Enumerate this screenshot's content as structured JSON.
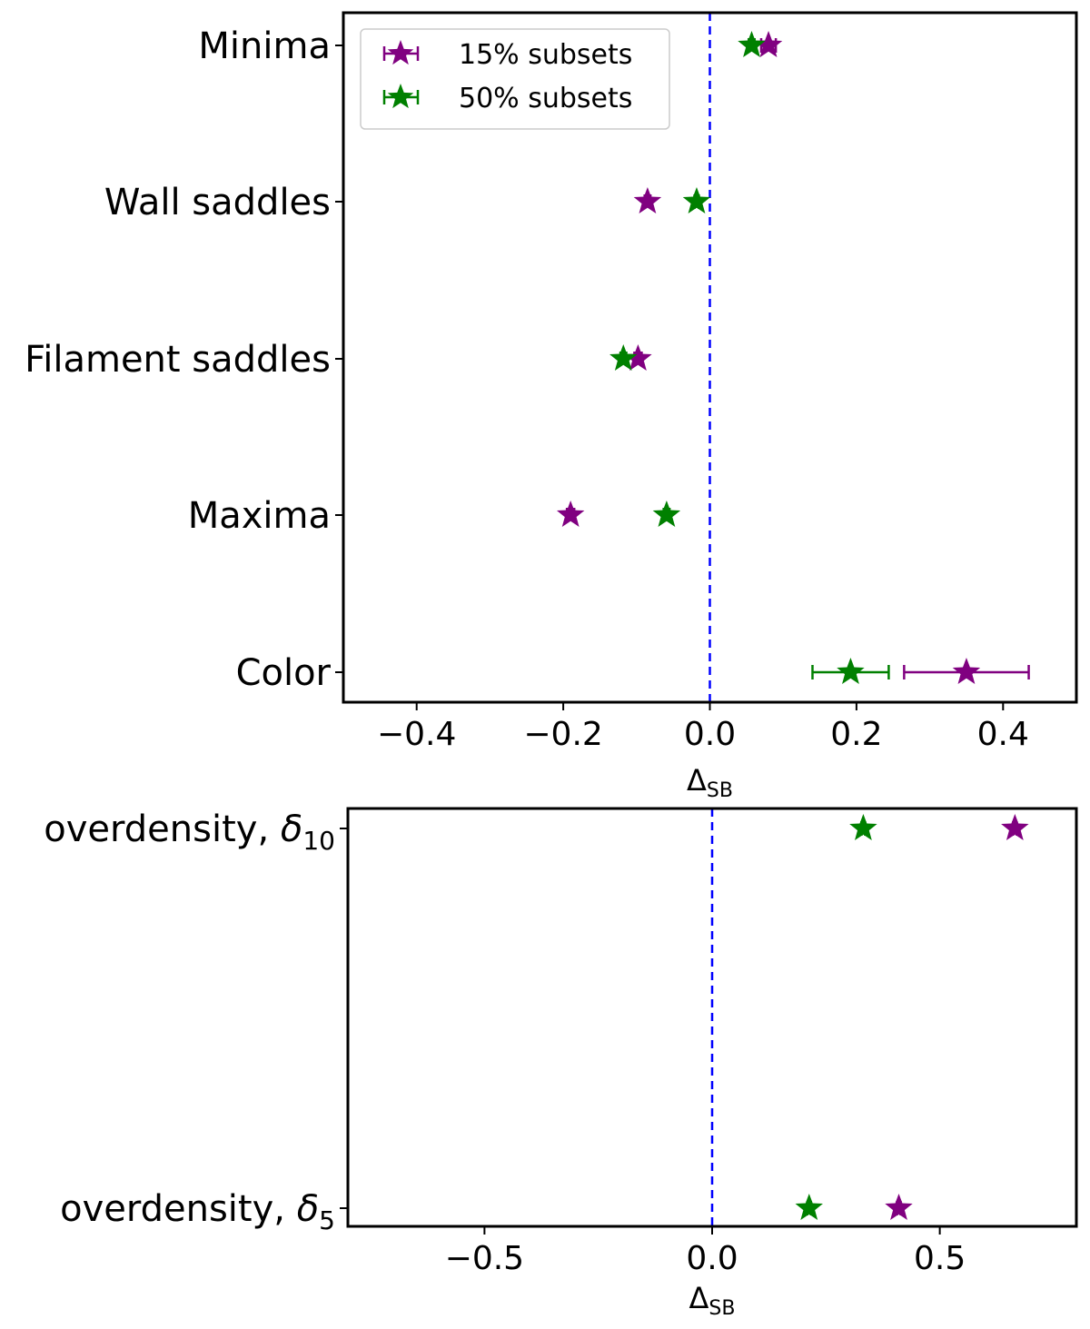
{
  "chart_data": [
    {
      "type": "scatter",
      "xlabel": "Δ",
      "xlabel_sub": "SB",
      "xlim": [
        -0.5,
        0.5
      ],
      "xticks": [
        -0.4,
        -0.2,
        0.0,
        0.2,
        0.4
      ],
      "xtick_labels": [
        "−0.4",
        "−0.2",
        "0.0",
        "0.2",
        "0.4"
      ],
      "categories": [
        "Minima",
        "Wall saddles",
        "Filament saddles",
        "Maxima",
        "Color"
      ],
      "reference_line": {
        "x": 0.0,
        "style": "dashed",
        "color": "#0000ff"
      },
      "legend": {
        "position": "top-left"
      },
      "series": [
        {
          "name": "15% subsets",
          "color": "#800080",
          "values": [
            0.08,
            -0.085,
            -0.098,
            -0.19,
            0.35
          ],
          "xerr": [
            0.01,
            0.004,
            0.005,
            0.005,
            0.085
          ]
        },
        {
          "name": "50% subsets",
          "color": "#008000",
          "values": [
            0.057,
            -0.018,
            -0.118,
            -0.059,
            0.192
          ],
          "xerr": [
            0.004,
            0.003,
            0.004,
            0.004,
            0.052
          ]
        }
      ]
    },
    {
      "type": "scatter",
      "xlabel": "Δ",
      "xlabel_sub": "SB",
      "xlim": [
        -0.8,
        0.8
      ],
      "xticks": [
        -0.5,
        0.0,
        0.5
      ],
      "xtick_labels": [
        "−0.5",
        "0.0",
        "0.5"
      ],
      "categories": [
        {
          "base": "overdensity, ",
          "sym": "δ",
          "sub": "10"
        },
        {
          "base": "overdensity, ",
          "sym": "δ",
          "sub": "5"
        }
      ],
      "reference_line": {
        "x": 0.0,
        "style": "dashed",
        "color": "#0000ff"
      },
      "series": [
        {
          "name": "15% subsets",
          "color": "#800080",
          "values": [
            0.665,
            0.41
          ],
          "xerr": [
            0.004,
            0.004
          ]
        },
        {
          "name": "50% subsets",
          "color": "#008000",
          "values": [
            0.332,
            0.213
          ],
          "xerr": [
            0.004,
            0.004
          ]
        }
      ]
    }
  ]
}
